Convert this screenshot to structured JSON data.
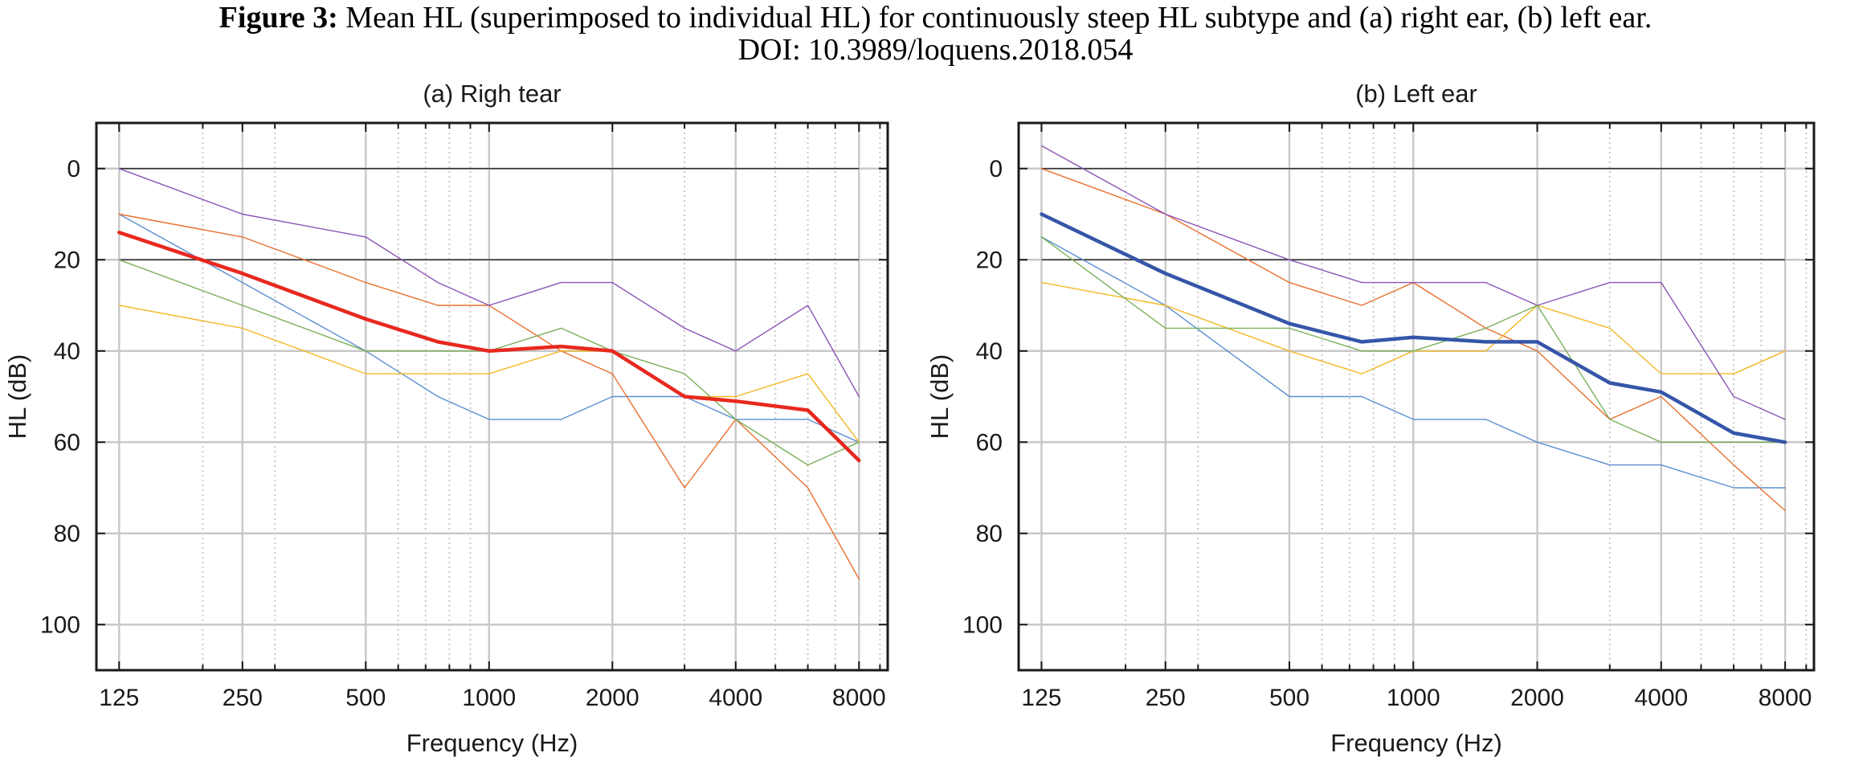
{
  "caption": {
    "label": "Figure 3:",
    "text": "Mean HL (superimposed to individual HL) for continuously steep HL subtype and (a) right ear, (b) left ear.",
    "doi": "DOI: 10.3989/loquens.2018.054"
  },
  "chart_data": [
    {
      "type": "line",
      "title": "(a) Righ tear",
      "xlabel": "Frequency (Hz)",
      "ylabel": "HL (dB)",
      "x_scale": "log2",
      "xlim": [
        110,
        9400
      ],
      "ylim": [
        110,
        -10
      ],
      "y_inverted": true,
      "x_ticks": [
        125,
        250,
        500,
        1000,
        2000,
        4000,
        8000
      ],
      "y_ticks": [
        0,
        20,
        40,
        60,
        80,
        100
      ],
      "x_tick_labels": [
        "125",
        "250",
        "500",
        "1000",
        "2000",
        "4000",
        "8000"
      ],
      "y_tick_labels": [
        "0",
        "20",
        "40",
        "60",
        "80",
        "100"
      ],
      "minor_x_gridlines": [
        200,
        300,
        600,
        700,
        800,
        900,
        3000,
        5000,
        6000,
        7000,
        9000
      ],
      "reference_lines": [
        0,
        20
      ],
      "colors": {
        "reference": "#333333",
        "grid": "#c8c8c8",
        "axis": "#1a1a1a"
      },
      "series": [
        {
          "color": "#5b8fd0",
          "width": 1.4,
          "x": [
            125,
            250,
            500,
            750,
            1000,
            1500,
            2000,
            3000,
            4000,
            6000,
            8000
          ],
          "y": [
            10,
            25,
            40,
            50,
            55,
            55,
            50,
            50,
            55,
            55,
            60
          ]
        },
        {
          "color": "#e8702f",
          "width": 1.4,
          "x": [
            125,
            250,
            500,
            750,
            1000,
            1500,
            2000,
            3000,
            4000,
            6000,
            8000
          ],
          "y": [
            10,
            15,
            25,
            30,
            30,
            40,
            45,
            70,
            55,
            70,
            90
          ]
        },
        {
          "color": "#f2b824",
          "width": 1.4,
          "x": [
            125,
            250,
            500,
            750,
            1000,
            1500,
            2000,
            3000,
            4000,
            6000,
            8000
          ],
          "y": [
            30,
            35,
            45,
            45,
            45,
            40,
            40,
            50,
            50,
            45,
            60
          ]
        },
        {
          "color": "#8b55b5",
          "width": 1.4,
          "x": [
            125,
            250,
            500,
            750,
            1000,
            1500,
            2000,
            3000,
            4000,
            6000,
            8000
          ],
          "y": [
            0,
            10,
            15,
            25,
            30,
            25,
            25,
            35,
            40,
            30,
            50
          ]
        },
        {
          "color": "#7cb05a",
          "width": 1.4,
          "x": [
            125,
            250,
            500,
            750,
            1000,
            1500,
            2000,
            3000,
            4000,
            6000,
            8000
          ],
          "y": [
            20,
            30,
            40,
            40,
            40,
            35,
            40,
            45,
            55,
            65,
            60
          ]
        },
        {
          "color": "#e8281e",
          "width": 4.5,
          "role": "mean",
          "x": [
            125,
            250,
            500,
            750,
            1000,
            1500,
            2000,
            3000,
            4000,
            6000,
            8000
          ],
          "y": [
            14,
            23,
            33,
            38,
            40,
            39,
            40,
            50,
            51,
            53,
            64
          ]
        }
      ]
    },
    {
      "type": "line",
      "title": "(b) Left ear",
      "xlabel": "Frequency (Hz)",
      "ylabel": "HL (dB)",
      "x_scale": "log2",
      "xlim": [
        110,
        9400
      ],
      "ylim": [
        110,
        -10
      ],
      "y_inverted": true,
      "x_ticks": [
        125,
        250,
        500,
        1000,
        2000,
        4000,
        8000
      ],
      "y_ticks": [
        0,
        20,
        40,
        60,
        80,
        100
      ],
      "x_tick_labels": [
        "125",
        "250",
        "500",
        "1000",
        "2000",
        "4000",
        "8000"
      ],
      "y_tick_labels": [
        "0",
        "20",
        "40",
        "60",
        "80",
        "100"
      ],
      "minor_x_gridlines": [
        200,
        300,
        600,
        700,
        800,
        900,
        3000,
        5000,
        6000,
        7000,
        9000
      ],
      "reference_lines": [
        0,
        20
      ],
      "colors": {
        "reference": "#333333",
        "grid": "#c8c8c8",
        "axis": "#1a1a1a"
      },
      "series": [
        {
          "color": "#5b8fd0",
          "width": 1.4,
          "x": [
            125,
            250,
            500,
            750,
            1000,
            1500,
            2000,
            3000,
            4000,
            6000,
            8000
          ],
          "y": [
            15,
            30,
            50,
            50,
            55,
            55,
            60,
            65,
            65,
            70,
            70
          ]
        },
        {
          "color": "#e8702f",
          "width": 1.4,
          "x": [
            125,
            250,
            500,
            750,
            1000,
            1500,
            2000,
            3000,
            4000,
            6000,
            8000
          ],
          "y": [
            0,
            10,
            25,
            30,
            25,
            35,
            40,
            55,
            50,
            65,
            75
          ]
        },
        {
          "color": "#f2b824",
          "width": 1.4,
          "x": [
            125,
            250,
            500,
            750,
            1000,
            1500,
            2000,
            3000,
            4000,
            6000,
            8000
          ],
          "y": [
            25,
            30,
            40,
            45,
            40,
            40,
            30,
            35,
            45,
            45,
            40
          ]
        },
        {
          "color": "#8b55b5",
          "width": 1.4,
          "x": [
            125,
            250,
            500,
            750,
            1000,
            1500,
            2000,
            3000,
            4000,
            6000,
            8000
          ],
          "y": [
            -5,
            10,
            20,
            25,
            25,
            25,
            30,
            25,
            25,
            50,
            55
          ]
        },
        {
          "color": "#7cb05a",
          "width": 1.4,
          "x": [
            125,
            250,
            500,
            750,
            1000,
            1500,
            2000,
            3000,
            4000,
            6000,
            8000
          ],
          "y": [
            15,
            35,
            35,
            40,
            40,
            35,
            30,
            55,
            60,
            60,
            60
          ]
        },
        {
          "color": "#3556a8",
          "width": 4.5,
          "role": "mean",
          "x": [
            125,
            250,
            500,
            750,
            1000,
            1500,
            2000,
            3000,
            4000,
            6000,
            8000
          ],
          "y": [
            10,
            23,
            34,
            38,
            37,
            38,
            38,
            47,
            49,
            58,
            60
          ]
        }
      ]
    }
  ]
}
